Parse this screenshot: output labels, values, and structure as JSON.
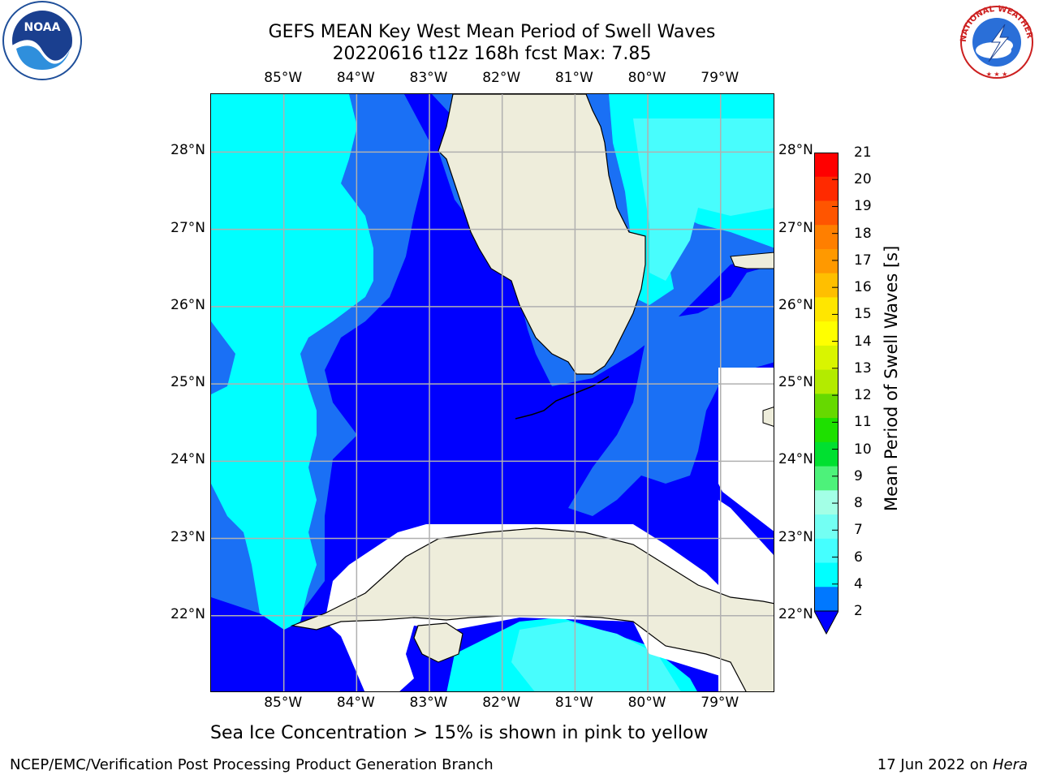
{
  "title_line1": "GEFS MEAN Key West Mean Period of Swell Waves",
  "title_line2": "20220616 t12z 168h fcst   Max: 7.85",
  "subtitle": "Sea Ice Concentration > 15% is shown in pink to yellow",
  "footer_left": "NCEP/EMC/Verification Post Processing Product Generation Branch",
  "footer_right_date": "17 Jun 2022 on ",
  "footer_right_host": "Hera",
  "logos": {
    "left": "noaa-logo",
    "right": "national-weather-service-logo"
  },
  "logo_text": {
    "noaa": "NOAA",
    "nws": "NATIONAL WEATHER SERVICE"
  },
  "map_extent": {
    "lon_min": -86.0,
    "lon_max": -78.25,
    "lat_min": 21.0,
    "lat_max": 28.75
  },
  "lon_ticks": [
    "85°W",
    "84°W",
    "83°W",
    "82°W",
    "81°W",
    "80°W",
    "79°W"
  ],
  "lat_ticks": [
    "28°N",
    "27°N",
    "26°N",
    "25°N",
    "24°N",
    "23°N",
    "22°N"
  ],
  "colorbar": {
    "title": "Mean Period of Swell Waves [s]",
    "ticks": [
      "21",
      "20",
      "19",
      "18",
      "17",
      "16",
      "15",
      "14",
      "13",
      "12",
      "11",
      "10",
      "9",
      "8",
      "7",
      "6",
      "4",
      "2"
    ],
    "extend": "min",
    "colors": [
      "#ff0000",
      "#ff2a00",
      "#ff5500",
      "#ff7f00",
      "#ff9900",
      "#ffbf00",
      "#ffe600",
      "#ffff00",
      "#d9f500",
      "#b3eb00",
      "#66d900",
      "#1ee000",
      "#00e030",
      "#4df27a",
      "#a3ffe6",
      "#73fff3",
      "#45ffff",
      "#00ffff",
      "#0078ff",
      "#0000ff"
    ]
  },
  "colors": {
    "land": "#eeeddb",
    "missing": "#ffffff",
    "band_2_4": "#1a70f5",
    "band_4_6": "#00ffff",
    "band_6_8": "#48fdfd",
    "below_2": "#0000ff"
  }
}
